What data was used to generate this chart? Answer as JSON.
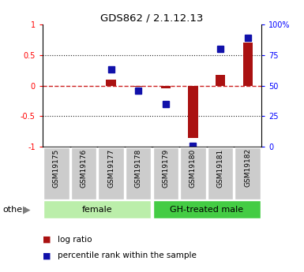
{
  "title": "GDS862 / 2.1.12.13",
  "samples": [
    "GSM19175",
    "GSM19176",
    "GSM19177",
    "GSM19178",
    "GSM19179",
    "GSM19180",
    "GSM19181",
    "GSM19182"
  ],
  "log_ratio": [
    0.0,
    0.0,
    0.1,
    -0.02,
    -0.04,
    -0.85,
    0.18,
    0.7
  ],
  "percentile_rank": [
    null,
    null,
    63,
    46,
    35,
    1,
    80,
    89
  ],
  "groups": [
    {
      "label": "female",
      "start": 0,
      "end": 3,
      "color": "#bbeeaa"
    },
    {
      "label": "GH-treated male",
      "start": 4,
      "end": 7,
      "color": "#44cc44"
    }
  ],
  "ylim": [
    -1,
    1
  ],
  "yticks": [
    -1,
    -0.5,
    0,
    0.5,
    1
  ],
  "ytick_labels": [
    "-1",
    "-0.5",
    "0",
    "0.5",
    "1"
  ],
  "right_yticks": [
    0,
    25,
    50,
    75,
    100
  ],
  "right_ytick_labels": [
    "0",
    "25",
    "50",
    "75",
    "100%"
  ],
  "bar_color": "#aa1111",
  "dot_color": "#1111aa",
  "zero_line_color": "#cc2222",
  "grid_color": "#222222",
  "sample_box_color": "#cccccc",
  "other_label": "other",
  "legend_log_ratio": "log ratio",
  "legend_percentile": "percentile rank within the sample"
}
